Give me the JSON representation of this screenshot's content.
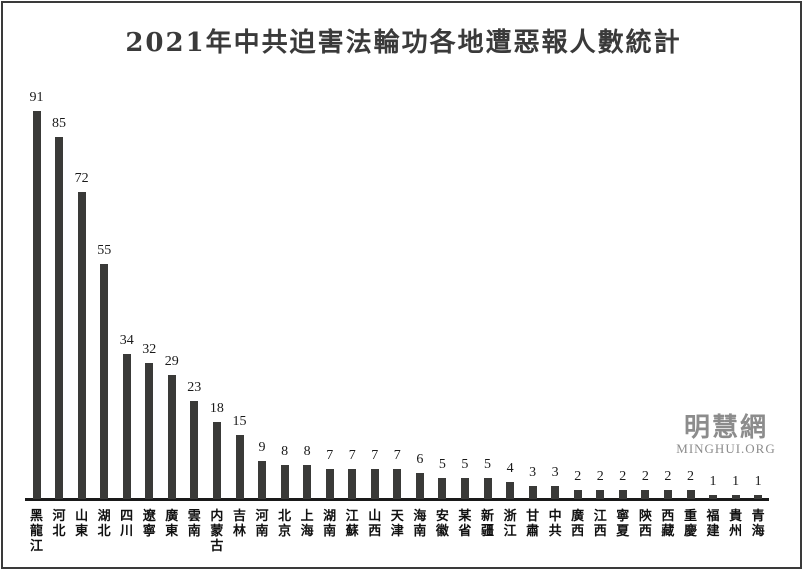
{
  "title": "2021年中共迫害法輪功各地遭惡報人數統計",
  "watermark": {
    "cjk": "明慧網",
    "latin": "MINGHUI.ORG"
  },
  "colors": {
    "background": "#ffffff",
    "frame_border": "#3a3a3a",
    "bar": "#3a3a38",
    "axis": "#1a1a1a",
    "title_text": "#3a3a3a",
    "label_text": "#1a1a1a",
    "watermark": "#8c8c8c"
  },
  "chart_data": {
    "type": "bar",
    "title": "2021年中共迫害法輪功各地遭惡報人數統計",
    "categories": [
      "黑龍江",
      "河北",
      "山東",
      "湖北",
      "四川",
      "遼寧",
      "廣東",
      "雲南",
      "内蒙古",
      "吉林",
      "河南",
      "北京",
      "上海",
      "湖南",
      "江蘇",
      "山西",
      "天津",
      "海南",
      "安徽",
      "某省",
      "新疆",
      "浙江",
      "甘肅",
      "中共",
      "廣西",
      "江西",
      "寧夏",
      "陝西",
      "西藏",
      "重慶",
      "福建",
      "貴州",
      "青海"
    ],
    "values": [
      91,
      85,
      72,
      55,
      34,
      32,
      29,
      23,
      18,
      15,
      9,
      8,
      8,
      7,
      7,
      7,
      7,
      6,
      5,
      5,
      5,
      4,
      3,
      3,
      2,
      2,
      2,
      2,
      2,
      2,
      1,
      1,
      1
    ],
    "value_labels_shown": true,
    "xlabel": "",
    "ylabel": "",
    "ylim": [
      0,
      95
    ],
    "grid": false,
    "legend": "none"
  }
}
